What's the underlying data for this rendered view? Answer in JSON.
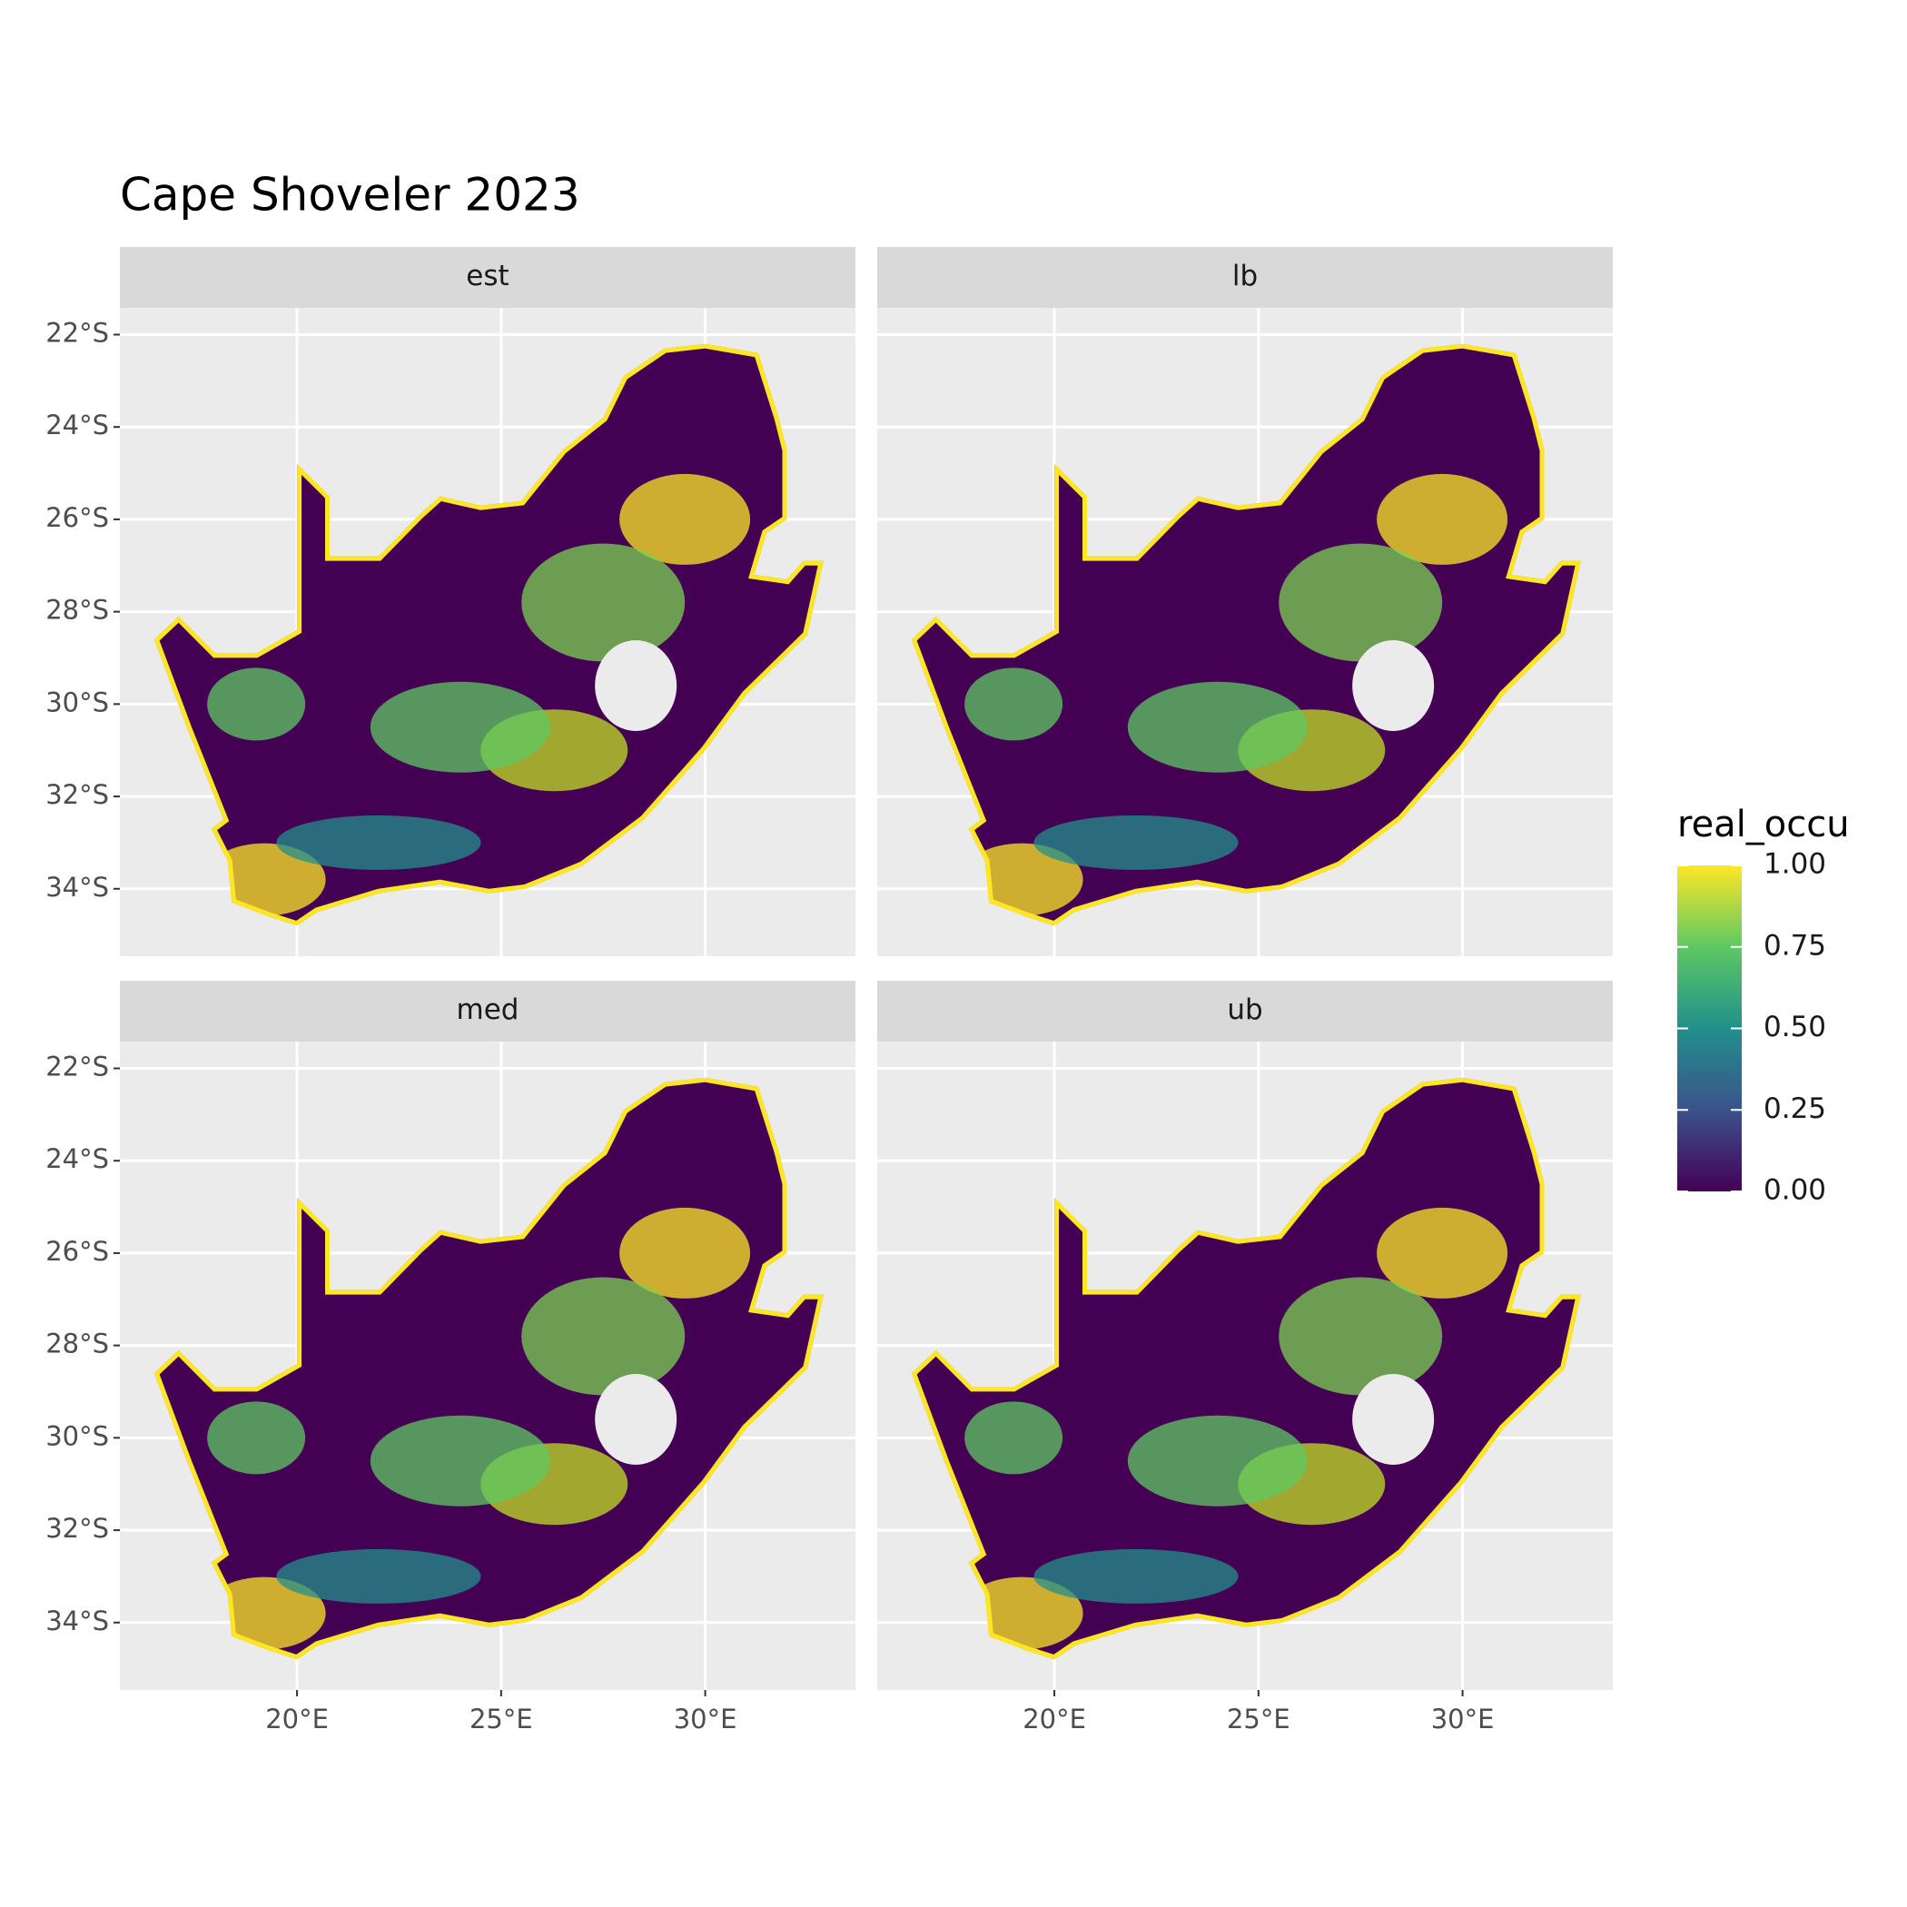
{
  "chart_data": {
    "type": "raster",
    "title": "Cape Shoveler 2023",
    "facets": [
      "est",
      "lb",
      "med",
      "ub"
    ],
    "xlim": [
      15.66,
      33.68
    ],
    "ylim": [
      -35.46,
      -21.42
    ],
    "xticks": [
      {
        "value": 20,
        "label": "20°E"
      },
      {
        "value": 25,
        "label": "25°E"
      },
      {
        "value": 30,
        "label": "30°E"
      }
    ],
    "yticks": [
      {
        "value": -22,
        "label": "22°S"
      },
      {
        "value": -24,
        "label": "24°S"
      },
      {
        "value": -26,
        "label": "26°S"
      },
      {
        "value": -28,
        "label": "28°S"
      },
      {
        "value": -30,
        "label": "30°S"
      },
      {
        "value": -32,
        "label": "32°S"
      },
      {
        "value": -34,
        "label": "34°S"
      }
    ],
    "grid": true,
    "legend": {
      "title": "real_occu",
      "lim": [
        0,
        1
      ],
      "ticks": [
        {
          "value": 0,
          "label": "0.00"
        },
        {
          "value": 0.25,
          "label": "0.25"
        },
        {
          "value": 0.5,
          "label": "0.50"
        },
        {
          "value": 0.75,
          "label": "0.75"
        },
        {
          "value": 1,
          "label": "1.00"
        }
      ],
      "colors": [
        "#440154",
        "#3b528b",
        "#21908c",
        "#5dc863",
        "#fde725"
      ]
    }
  }
}
